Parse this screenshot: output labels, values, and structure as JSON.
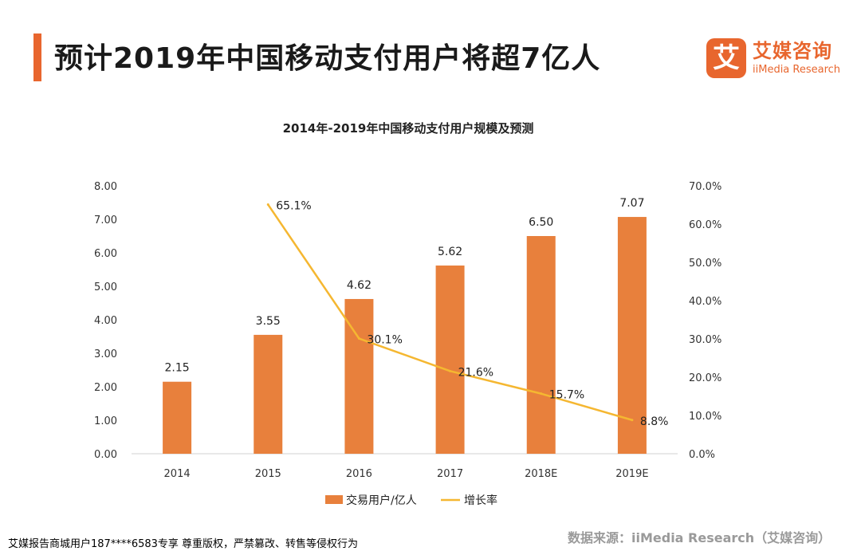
{
  "header": {
    "title": "预计2019年中国移动支付用户将超7亿人",
    "accent_color": "#E8662E"
  },
  "logo": {
    "mark": "艾",
    "name_cn": "艾媒咨询",
    "name_en": "iiMedia Research",
    "color": "#E8662E"
  },
  "chart_data": {
    "type": "bar",
    "title": "2014年-2019年中国移动支付用户规模及预测",
    "categories": [
      "2014",
      "2015",
      "2016",
      "2017",
      "2018E",
      "2019E"
    ],
    "series": [
      {
        "name": "交易用户/亿人",
        "type": "bar",
        "axis": "left",
        "color": "#E8803C",
        "values": [
          2.15,
          3.55,
          4.62,
          5.62,
          6.5,
          7.07
        ],
        "labels": [
          "2.15",
          "3.55",
          "4.62",
          "5.62",
          "6.50",
          "7.07"
        ]
      },
      {
        "name": "增长率",
        "type": "line",
        "axis": "right",
        "color": "#F5B731",
        "values": [
          null,
          65.1,
          30.1,
          21.6,
          15.7,
          8.8
        ],
        "labels": [
          "",
          "65.1%",
          "30.1%",
          "21.6%",
          "15.7%",
          "8.8%"
        ]
      }
    ],
    "y_left": {
      "ylim": [
        0,
        8
      ],
      "ticks": [
        "0.00",
        "1.00",
        "2.00",
        "3.00",
        "4.00",
        "5.00",
        "6.00",
        "7.00",
        "8.00"
      ]
    },
    "y_right": {
      "ylim": [
        0,
        70
      ],
      "ticks": [
        "0.0%",
        "10.0%",
        "20.0%",
        "30.0%",
        "40.0%",
        "50.0%",
        "60.0%",
        "70.0%"
      ]
    },
    "grid": false,
    "legend_position": "bottom-center"
  },
  "footer": {
    "note": "艾媒报告商城用户187****6583专享 尊重版权，严禁篡改、转售等侵权行为",
    "source": "数据来源：iiMedia Research（艾媒咨询）"
  }
}
